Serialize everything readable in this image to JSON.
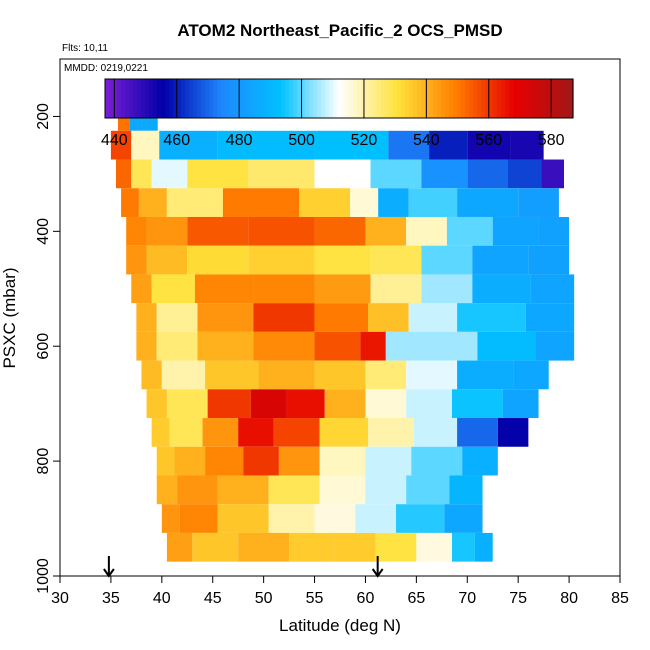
{
  "chart_data": {
    "type": "heatmap",
    "title": "ATOM2 Northeast_Pacific_2 OCS_PMSD",
    "annotations": [
      "Flts: 10,11",
      "MMDD: 0219,0221"
    ],
    "xlabel": "Latitude (deg N)",
    "ylabel": "PSXC (mbar)",
    "xlim": [
      30,
      85
    ],
    "ylim": [
      1000,
      100
    ],
    "x_ticks": [
      "30",
      "35",
      "40",
      "45",
      "50",
      "55",
      "60",
      "65",
      "70",
      "75",
      "80",
      "85"
    ],
    "y_ticks": [
      "200",
      "400",
      "600",
      "800",
      "1000"
    ],
    "colorbar": {
      "range": [
        437,
        587
      ],
      "tick_labels": [
        "440",
        "460",
        "480",
        "500",
        "520",
        "540",
        "560",
        "580"
      ],
      "colors": [
        "#7a1fd6",
        "#0000a8",
        "#1e88ff",
        "#00c0ff",
        "#ffffff",
        "#ffe23a",
        "#ff7d00",
        "#e60000",
        "#a01818"
      ]
    },
    "arrows_latitude": [
      34.8,
      61.2
    ],
    "rows": [
      {
        "p": 200,
        "cells": [
          [
            36.2,
            551
          ],
          [
            37.4,
            485
          ],
          [
            38.6,
            486
          ]
        ]
      },
      {
        "p": 250,
        "cells": [
          [
            35.5,
            558
          ],
          [
            38.5,
            518
          ],
          [
            41.0,
            488
          ],
          [
            50.0,
            492
          ],
          [
            60.0,
            493
          ],
          [
            64.5,
            472
          ],
          [
            68.0,
            460
          ],
          [
            72.0,
            453
          ],
          [
            76.5,
            452
          ]
        ]
      },
      {
        "p": 300,
        "cells": [
          [
            36.0,
            553
          ],
          [
            38.0,
            528
          ],
          [
            40.0,
            510
          ],
          [
            45.0,
            530
          ],
          [
            52.0,
            526
          ],
          [
            58.0,
            512
          ],
          [
            63.0,
            500
          ],
          [
            68.0,
            478
          ],
          [
            72.0,
            470
          ],
          [
            76.0,
            465
          ],
          [
            78.5,
            447
          ]
        ]
      },
      {
        "p": 350,
        "cells": [
          [
            36.5,
            550
          ],
          [
            39.0,
            540
          ],
          [
            42.0,
            525
          ],
          [
            50.0,
            550
          ],
          [
            57.0,
            534
          ],
          [
            60.0,
            516
          ],
          [
            62.5,
            487
          ],
          [
            66.0,
            498
          ],
          [
            72.0,
            485
          ],
          [
            78.0,
            482
          ]
        ]
      },
      {
        "p": 400,
        "cells": [
          [
            37.0,
            548
          ],
          [
            40.0,
            545
          ],
          [
            45.0,
            555
          ],
          [
            52.0,
            556
          ],
          [
            58.0,
            553
          ],
          [
            62.0,
            540
          ],
          [
            66.0,
            518
          ],
          [
            70.0,
            500
          ],
          [
            75.0,
            484
          ],
          [
            79.0,
            483
          ]
        ]
      },
      {
        "p": 450,
        "cells": [
          [
            37.0,
            545
          ],
          [
            40.0,
            538
          ],
          [
            45.0,
            532
          ],
          [
            52.0,
            534
          ],
          [
            58.0,
            530
          ],
          [
            63.0,
            528
          ],
          [
            68.0,
            500
          ],
          [
            73.0,
            484
          ],
          [
            79.0,
            483
          ]
        ]
      },
      {
        "p": 500,
        "cells": [
          [
            37.5,
            543
          ],
          [
            40.5,
            530
          ],
          [
            46.0,
            548
          ],
          [
            52.0,
            548
          ],
          [
            58.0,
            544
          ],
          [
            63.0,
            522
          ],
          [
            68.0,
            505
          ],
          [
            73.0,
            487
          ],
          [
            79.5,
            484
          ]
        ]
      },
      {
        "p": 550,
        "cells": [
          [
            38.0,
            540
          ],
          [
            41.0,
            522
          ],
          [
            46.0,
            545
          ],
          [
            52.0,
            560
          ],
          [
            58.0,
            550
          ],
          [
            62.5,
            537
          ],
          [
            66.0,
            508
          ],
          [
            72.0,
            495
          ],
          [
            79.5,
            485
          ]
        ]
      },
      {
        "p": 600,
        "cells": [
          [
            38.0,
            540
          ],
          [
            41.0,
            525
          ],
          [
            46.0,
            540
          ],
          [
            52.0,
            547
          ],
          [
            58.0,
            556
          ],
          [
            61.0,
            565
          ],
          [
            63.0,
            505
          ],
          [
            68.0,
            505
          ],
          [
            74.0,
            492
          ],
          [
            79.5,
            484
          ]
        ]
      },
      {
        "p": 650,
        "cells": [
          [
            38.5,
            538
          ],
          [
            41.5,
            520
          ],
          [
            47.0,
            536
          ],
          [
            52.0,
            540
          ],
          [
            58.0,
            536
          ],
          [
            62.0,
            525
          ],
          [
            66.0,
            510
          ],
          [
            72.0,
            487
          ],
          [
            77.0,
            485
          ]
        ]
      },
      {
        "p": 700,
        "cells": [
          [
            39.0,
            536
          ],
          [
            42.0,
            528
          ],
          [
            47.0,
            560
          ],
          [
            50.5,
            572
          ],
          [
            54.0,
            566
          ],
          [
            58.0,
            540
          ],
          [
            62.0,
            516
          ],
          [
            66.0,
            508
          ],
          [
            71.0,
            494
          ],
          [
            76.0,
            484
          ]
        ]
      },
      {
        "p": 750,
        "cells": [
          [
            39.5,
            535
          ],
          [
            42.0,
            528
          ],
          [
            46.0,
            545
          ],
          [
            49.0,
            566
          ],
          [
            53.0,
            558
          ],
          [
            58.0,
            533
          ],
          [
            62.5,
            520
          ],
          [
            67.0,
            508
          ],
          [
            71.0,
            470
          ],
          [
            75.0,
            455
          ]
        ]
      },
      {
        "p": 800,
        "cells": [
          [
            40.0,
            536
          ],
          [
            42.5,
            540
          ],
          [
            46.0,
            548
          ],
          [
            50.0,
            560
          ],
          [
            53.0,
            545
          ],
          [
            58.0,
            518
          ],
          [
            62.0,
            508
          ],
          [
            67.0,
            500
          ],
          [
            72.0,
            488
          ]
        ]
      },
      {
        "p": 850,
        "cells": [
          [
            40.0,
            540
          ],
          [
            43.0,
            545
          ],
          [
            48.0,
            540
          ],
          [
            53.0,
            528
          ],
          [
            58.0,
            516
          ],
          [
            62.0,
            508
          ],
          [
            66.0,
            500
          ],
          [
            70.5,
            490
          ]
        ]
      },
      {
        "p": 900,
        "cells": [
          [
            40.5,
            545
          ],
          [
            43.0,
            548
          ],
          [
            48.0,
            536
          ],
          [
            53.0,
            520
          ],
          [
            57.0,
            515
          ],
          [
            61.0,
            508
          ],
          [
            65.0,
            496
          ],
          [
            70.5,
            485
          ]
        ]
      },
      {
        "p": 950,
        "cells": [
          [
            41.0,
            543
          ],
          [
            45.0,
            536
          ],
          [
            50.0,
            540
          ],
          [
            55.0,
            535
          ],
          [
            59.0,
            535
          ],
          [
            63.0,
            530
          ],
          [
            67.0,
            515
          ],
          [
            70.0,
            495
          ],
          [
            71.5,
            488
          ]
        ]
      }
    ]
  }
}
